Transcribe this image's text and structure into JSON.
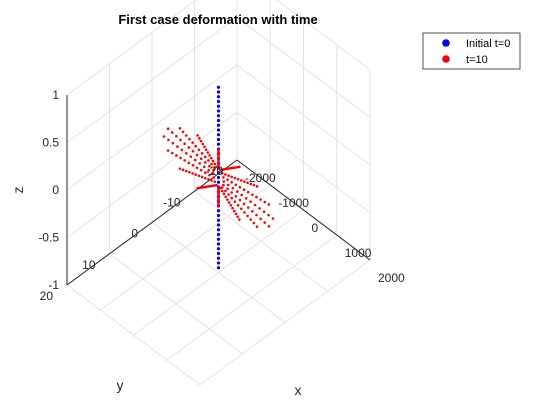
{
  "chart_data": {
    "type": "scatter",
    "projection": "3d",
    "title": "First case deformation with time",
    "xlabel": "x",
    "ylabel": "y",
    "zlabel": "z",
    "xlim": [
      -2000,
      2000
    ],
    "ylim": [
      -20,
      20
    ],
    "zlim": [
      -1,
      1
    ],
    "xticks": [
      "-2000",
      "-1000",
      "0",
      "1000",
      "2000"
    ],
    "yticks": [
      "-20",
      "-10",
      "0",
      "10",
      "20"
    ],
    "zticks": [
      "-1",
      "-0.5",
      "0",
      "0.5",
      "1"
    ],
    "grid": true,
    "legend_position": "top-right",
    "legend": [
      "Initial t=0",
      "t=10"
    ],
    "series": [
      {
        "name": "Initial t=0",
        "color": "#0000ff",
        "marker": "point",
        "x": [
          0
        ],
        "y": [
          0
        ],
        "z_range": [
          -0.95,
          0.95
        ],
        "z_step": 0.05
      },
      {
        "name": "t=10",
        "color": "#ff0000",
        "marker": "point",
        "radial_lines": 16,
        "radius_range": [
          160,
          1640
        ],
        "points_per_line": 12,
        "y": 0,
        "z_amplitude": 0.3
      }
    ]
  }
}
